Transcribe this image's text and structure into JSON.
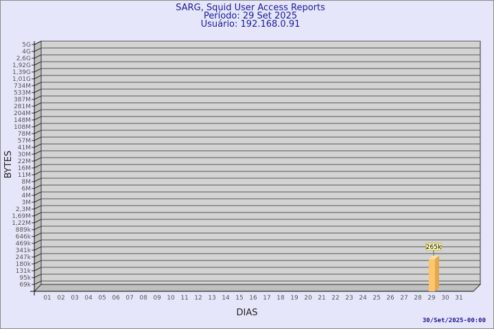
{
  "chart_data": {
    "type": "bar",
    "title": [
      "SARG, Squid User Access Reports",
      "Período: 29 Set 2025",
      "Usuário: 192.168.0.91"
    ],
    "xlabel": "DIAS",
    "ylabel": "BYTES",
    "yscale": "log",
    "y_ticks": [
      "5G",
      "4G",
      "2,6G",
      "1,92G",
      "1,39G",
      "1,01G",
      "734M",
      "533M",
      "387M",
      "281M",
      "204M",
      "148M",
      "108M",
      "78M",
      "57M",
      "41M",
      "30M",
      "22M",
      "16M",
      "11M",
      "8M",
      "6M",
      "4M",
      "3M",
      "2,3M",
      "1,69M",
      "1,22M",
      "889k",
      "646k",
      "469k",
      "341k",
      "247k",
      "180k",
      "131k",
      "95k",
      "69k"
    ],
    "y_tick_values": [
      5000000000.0,
      4000000000.0,
      2600000000.0,
      1920000000.0,
      1390000000.0,
      1010000000.0,
      734000000.0,
      533000000.0,
      387000000.0,
      281000000.0,
      204000000.0,
      148000000.0,
      108000000.0,
      78000000.0,
      57000000.0,
      41000000.0,
      30000000.0,
      22000000.0,
      16000000.0,
      11000000.0,
      8000000.0,
      6000000.0,
      4000000.0,
      3000000.0,
      2300000.0,
      1690000.0,
      1220000.0,
      889000.0,
      646000.0,
      469000.0,
      341000.0,
      247000.0,
      180000.0,
      131000.0,
      95000.0,
      69000.0
    ],
    "categories": [
      "01",
      "02",
      "03",
      "04",
      "05",
      "06",
      "07",
      "08",
      "09",
      "10",
      "11",
      "12",
      "13",
      "14",
      "15",
      "16",
      "17",
      "18",
      "19",
      "20",
      "21",
      "22",
      "23",
      "24",
      "25",
      "26",
      "27",
      "28",
      "29",
      "30",
      "31"
    ],
    "values": [
      null,
      null,
      null,
      null,
      null,
      null,
      null,
      null,
      null,
      null,
      null,
      null,
      null,
      null,
      null,
      null,
      null,
      null,
      null,
      null,
      null,
      null,
      null,
      null,
      null,
      null,
      null,
      null,
      265000,
      null,
      null
    ],
    "data_labels": {
      "29": "265k"
    },
    "grid": true,
    "colors": {
      "background": "#e6e6fa",
      "wall": "#d3d3d3",
      "side": "#c0c0c0",
      "bar": "#ffc56a",
      "bar_side": "#e0a850",
      "title": "#1a1a9a",
      "label_bg": "#ffffc0"
    }
  },
  "footer": "30/Set/2025-00:00"
}
